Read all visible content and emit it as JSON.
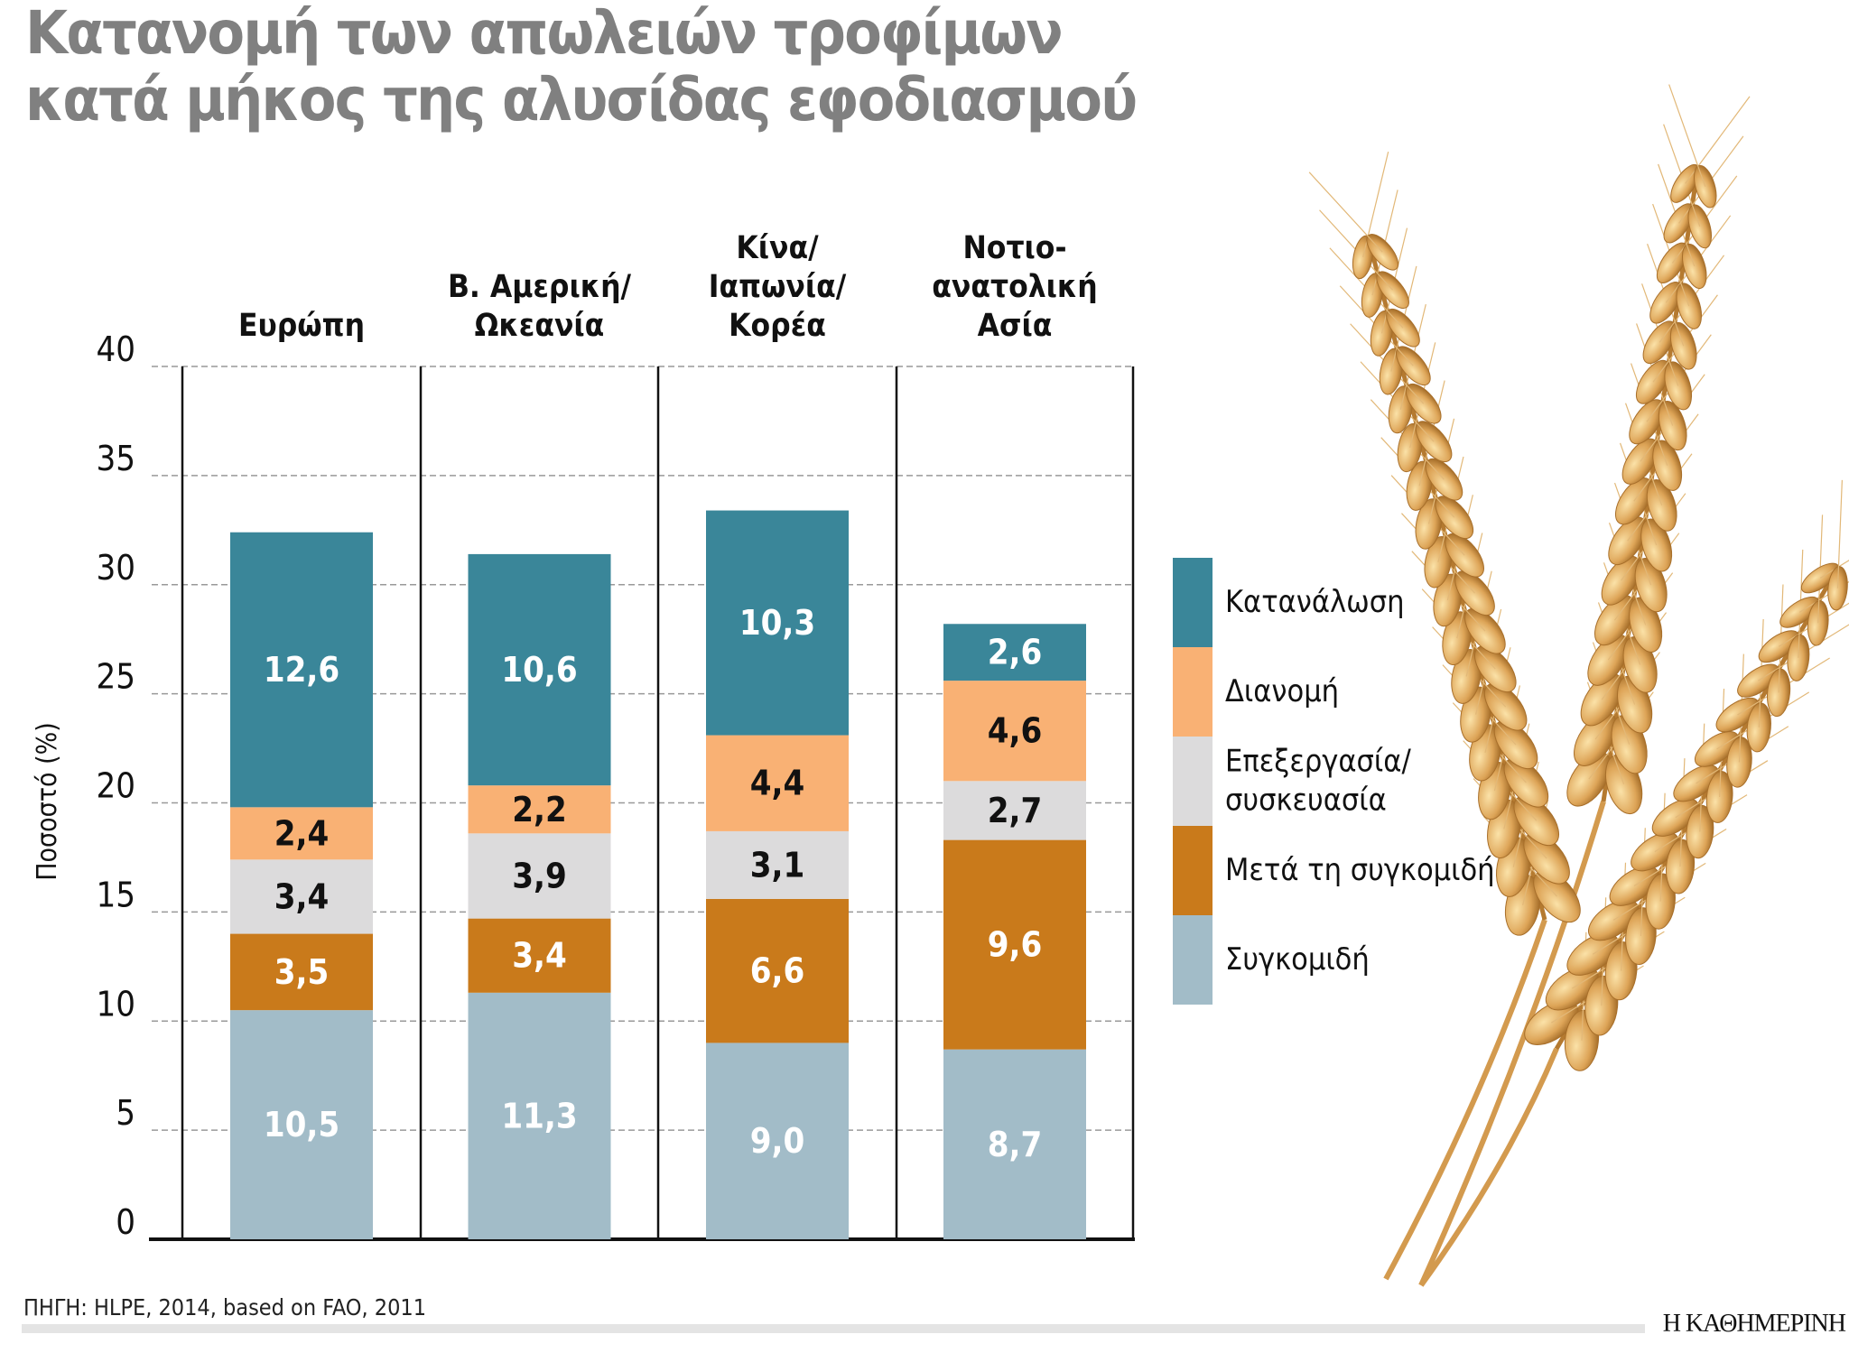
{
  "title_lines": [
    "Κατανομή των απωλειών τροφίμων",
    "κατά μήκος της αλυσίδας εφοδιασμού"
  ],
  "source": "ΠΗΓΗ: HLPE, 2014, based on FAO, 2011",
  "logo": "Η ΚΑΘΗΜΕΡΙΝΗ",
  "chart_data": {
    "type": "bar",
    "stacked": true,
    "ylabel": "Ποσοστό (%)",
    "ylim": [
      0,
      40
    ],
    "yticks": [
      0,
      5,
      10,
      15,
      20,
      25,
      30,
      35,
      40
    ],
    "grid": true,
    "legend_position": "right",
    "categories": [
      [
        "Ευρώπη"
      ],
      [
        "Β. Αμερική/",
        "Ωκεανία"
      ],
      [
        "Κίνα/",
        "Ιαπωνία/",
        "Κορέα"
      ],
      [
        "Νοτιο-",
        "ανατολική",
        "Ασία"
      ]
    ],
    "series": [
      {
        "name": "Συγκομιδή",
        "color": "#a2bcc8",
        "label_color": "#ffffff",
        "values": [
          10.5,
          11.3,
          9.0,
          8.7
        ],
        "labels": [
          "10,5",
          "11,3",
          "9,0",
          "8,7"
        ]
      },
      {
        "name": "Μετά τη συγκομιδή",
        "color": "#c97a1b",
        "label_color": "#ffffff",
        "values": [
          3.5,
          3.4,
          6.6,
          9.6
        ],
        "labels": [
          "3,5",
          "3,4",
          "6,6",
          "9,6"
        ]
      },
      {
        "name": "Επεξεργασία/ συσκευασία",
        "legend_lines": [
          "Επεξεργασία/",
          "συσκευασία"
        ],
        "color": "#dcdbdc",
        "label_color": "#111111",
        "values": [
          3.4,
          3.9,
          3.1,
          2.7
        ],
        "labels": [
          "3,4",
          "3,9",
          "3,1",
          "2,7"
        ]
      },
      {
        "name": "Διανομή",
        "color": "#f9b174",
        "label_color": "#111111",
        "values": [
          2.4,
          2.2,
          4.4,
          4.6
        ],
        "labels": [
          "2,4",
          "2,2",
          "4,4",
          "4,6"
        ]
      },
      {
        "name": "Κατανάλωση",
        "color": "#3a8699",
        "label_color": "#ffffff",
        "values": [
          12.6,
          10.6,
          10.3,
          2.6
        ],
        "labels": [
          "12,6",
          "10,6",
          "10,3",
          "2,6"
        ]
      }
    ]
  }
}
